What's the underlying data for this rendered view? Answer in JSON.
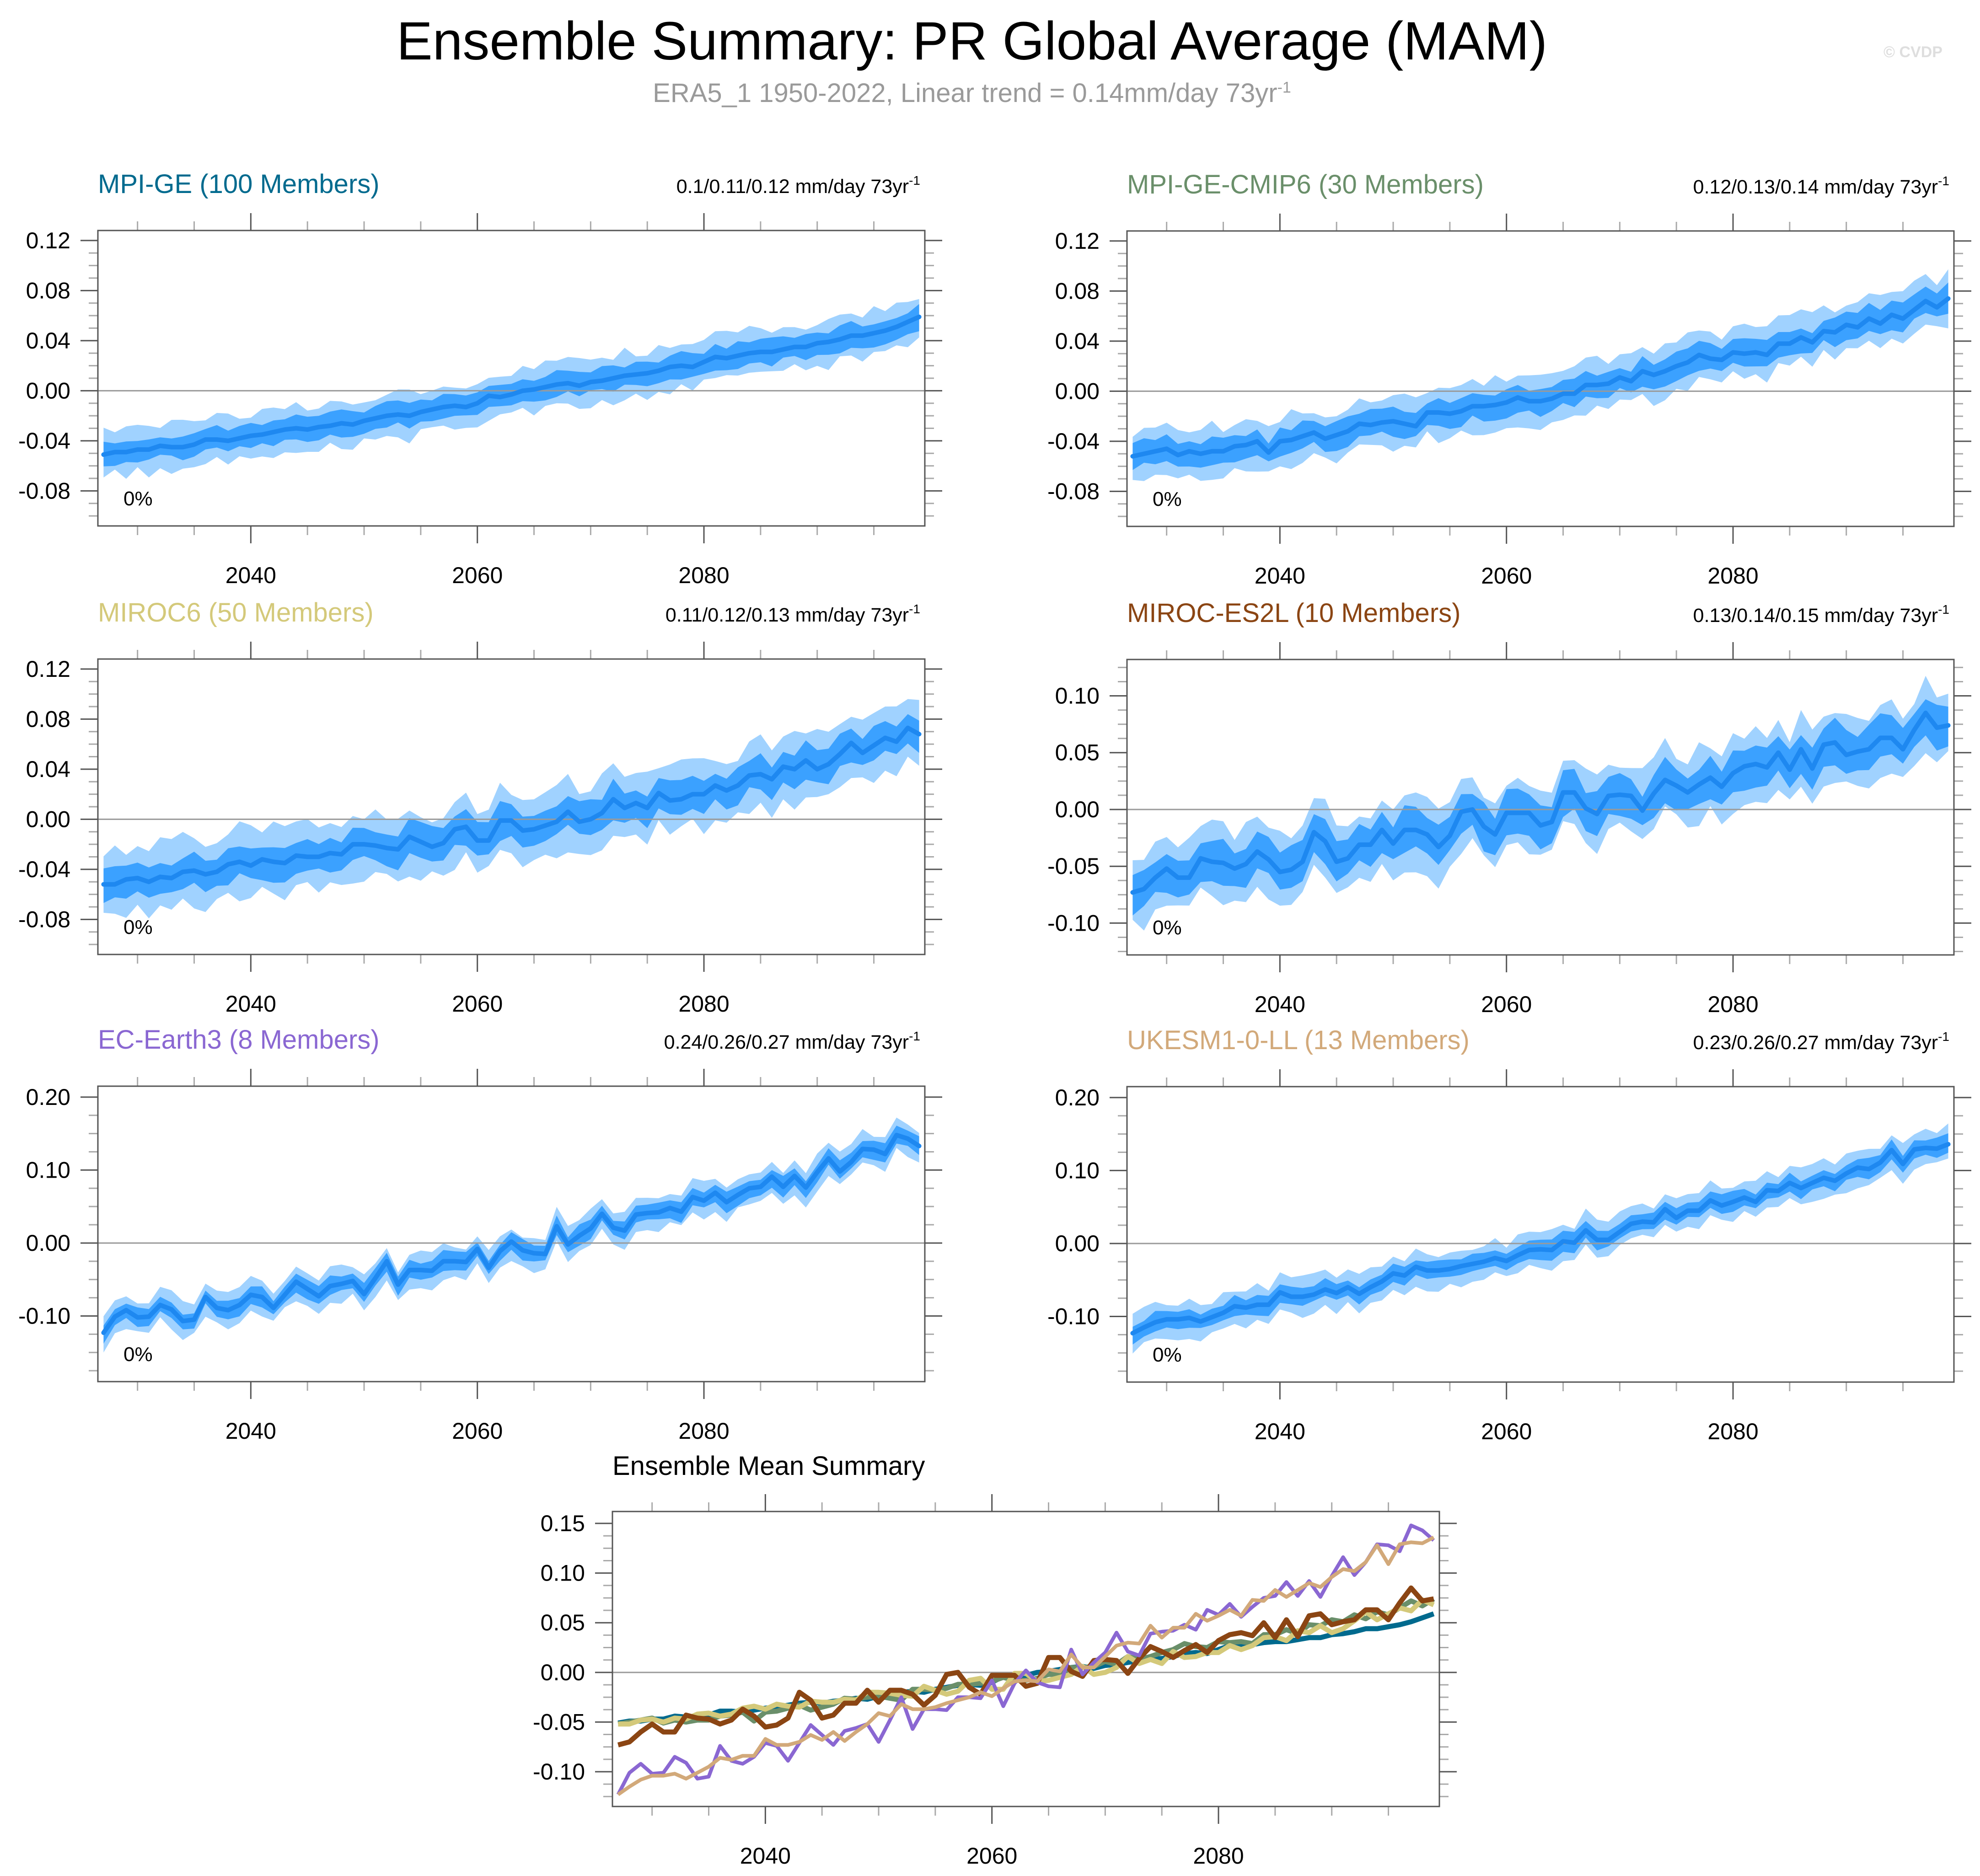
{
  "title": "Ensemble Summary: PR Global Average (MAM)",
  "subtitle": {
    "text": "ERA5_1 1950-2022, Linear trend = 0.14mm/day 73yr",
    "superscript": "-1"
  },
  "watermark": "© CVDP",
  "zero_annotation": "0%",
  "colors": {
    "band_outer": "#a0d2ff",
    "band_inner": "#3ba1ff",
    "mean_line": "#1e88f0",
    "zero_line": "#9a9a9a",
    "frame": "#555555"
  },
  "chart_data": [
    {
      "type": "area",
      "id": "mpi-ge",
      "title": "MPI-GE (100 Members)",
      "title_color": "#006a8e",
      "trend_text": "0.1/0.11/0.12 mm/day 73yr",
      "trend_superscript": "-1",
      "annotation": "0%",
      "xlim": [
        2026.5,
        2099.5
      ],
      "ylim": [
        -0.108,
        0.128
      ],
      "xticks": [
        2040,
        2060,
        2080
      ],
      "xtick_labels": [
        "2040",
        "2060",
        "2080"
      ],
      "yticks": [
        -0.08,
        -0.04,
        0.0,
        0.04,
        0.08,
        0.12
      ],
      "ytick_labels": [
        "-0.08",
        "-0.04",
        "0.00",
        "0.04",
        "0.08",
        "0.12"
      ],
      "years_start": 2027,
      "mean": [
        -0.051,
        -0.049,
        -0.049,
        -0.047,
        -0.047,
        -0.044,
        -0.045,
        -0.045,
        -0.043,
        -0.039,
        -0.039,
        -0.04,
        -0.038,
        -0.036,
        -0.035,
        -0.033,
        -0.031,
        -0.03,
        -0.031,
        -0.029,
        -0.028,
        -0.026,
        -0.027,
        -0.024,
        -0.022,
        -0.02,
        -0.019,
        -0.02,
        -0.017,
        -0.015,
        -0.013,
        -0.012,
        -0.013,
        -0.01,
        -0.004,
        -0.005,
        -0.003,
        0.0,
        0.001,
        0.003,
        0.005,
        0.006,
        0.004,
        0.007,
        0.008,
        0.01,
        0.012,
        0.013,
        0.014,
        0.016,
        0.019,
        0.02,
        0.019,
        0.023,
        0.027,
        0.026,
        0.028,
        0.03,
        0.031,
        0.031,
        0.033,
        0.035,
        0.035,
        0.038,
        0.039,
        0.041,
        0.044,
        0.044,
        0.046,
        0.048,
        0.051,
        0.055,
        0.059
      ],
      "inner_halfwidth": 0.009,
      "outer_halfwidth": 0.018
    },
    {
      "type": "area",
      "id": "mpi-ge-cmip6",
      "title": "MPI-GE-CMIP6 (30 Members)",
      "title_color": "#6a8f6a",
      "trend_text": "0.12/0.13/0.14 mm/day 73yr",
      "trend_superscript": "-1",
      "annotation": "0%",
      "xlim": [
        2026.5,
        2099.5
      ],
      "ylim": [
        -0.108,
        0.128
      ],
      "xticks": [
        2040,
        2060,
        2080
      ],
      "xtick_labels": [
        "2040",
        "2060",
        "2080"
      ],
      "yticks": [
        -0.08,
        -0.04,
        0.0,
        0.04,
        0.08,
        0.12
      ],
      "ytick_labels": [
        "-0.08",
        "-0.04",
        "0.00",
        "0.04",
        "0.08",
        "0.12"
      ],
      "years_start": 2027,
      "mean": [
        -0.052,
        -0.05,
        -0.048,
        -0.046,
        -0.051,
        -0.048,
        -0.05,
        -0.048,
        -0.048,
        -0.044,
        -0.043,
        -0.04,
        -0.049,
        -0.04,
        -0.039,
        -0.036,
        -0.033,
        -0.038,
        -0.035,
        -0.032,
        -0.026,
        -0.027,
        -0.025,
        -0.024,
        -0.026,
        -0.028,
        -0.017,
        -0.017,
        -0.018,
        -0.016,
        -0.012,
        -0.012,
        -0.011,
        -0.009,
        -0.005,
        -0.008,
        -0.008,
        -0.006,
        -0.002,
        -0.002,
        0.005,
        0.005,
        0.006,
        0.011,
        0.008,
        0.016,
        0.013,
        0.016,
        0.02,
        0.023,
        0.029,
        0.026,
        0.025,
        0.031,
        0.03,
        0.031,
        0.029,
        0.038,
        0.038,
        0.043,
        0.039,
        0.048,
        0.047,
        0.053,
        0.051,
        0.058,
        0.054,
        0.061,
        0.058,
        0.065,
        0.072,
        0.067,
        0.074
      ],
      "inner_halfwidth": 0.01,
      "outer_halfwidth": 0.02
    },
    {
      "type": "area",
      "id": "miroc6",
      "title": "MIROC6 (50 Members)",
      "title_color": "#d4c97a",
      "trend_text": "0.11/0.12/0.13 mm/day 73yr",
      "trend_superscript": "-1",
      "annotation": "0%",
      "xlim": [
        2026.5,
        2099.5
      ],
      "ylim": [
        -0.108,
        0.128
      ],
      "xticks": [
        2040,
        2060,
        2080
      ],
      "xtick_labels": [
        "2040",
        "2060",
        "2080"
      ],
      "yticks": [
        -0.08,
        -0.04,
        0.0,
        0.04,
        0.08,
        0.12
      ],
      "ytick_labels": [
        "-0.08",
        "-0.04",
        "0.00",
        "0.04",
        "0.08",
        "0.12"
      ],
      "years_start": 2027,
      "mean": [
        -0.052,
        -0.052,
        -0.048,
        -0.047,
        -0.05,
        -0.046,
        -0.047,
        -0.042,
        -0.041,
        -0.044,
        -0.042,
        -0.036,
        -0.034,
        -0.037,
        -0.032,
        -0.034,
        -0.035,
        -0.029,
        -0.03,
        -0.03,
        -0.027,
        -0.028,
        -0.02,
        -0.02,
        -0.021,
        -0.023,
        -0.024,
        -0.014,
        -0.018,
        -0.022,
        -0.019,
        -0.008,
        -0.006,
        -0.017,
        -0.017,
        -0.001,
        -0.001,
        -0.009,
        -0.008,
        -0.005,
        -0.002,
        0.006,
        -0.002,
        0.0,
        0.005,
        0.016,
        0.009,
        0.013,
        0.009,
        0.021,
        0.015,
        0.016,
        0.02,
        0.02,
        0.027,
        0.023,
        0.027,
        0.035,
        0.036,
        0.032,
        0.042,
        0.04,
        0.047,
        0.04,
        0.044,
        0.052,
        0.061,
        0.053,
        0.059,
        0.065,
        0.062,
        0.073,
        0.068
      ],
      "inner_halfwidth": 0.013,
      "outer_halfwidth": 0.026
    },
    {
      "type": "area",
      "id": "miroc-es2l",
      "title": "MIROC-ES2L (10 Members)",
      "title_color": "#8b4513",
      "trend_text": "0.13/0.14/0.15 mm/day 73yr",
      "trend_superscript": "-1",
      "annotation": "0%",
      "xlim": [
        2026.5,
        2099.5
      ],
      "ylim": [
        -0.128,
        0.132
      ],
      "xticks": [
        2040,
        2060,
        2080
      ],
      "xtick_labels": [
        "2040",
        "2060",
        "2080"
      ],
      "yticks": [
        -0.1,
        -0.05,
        0.0,
        0.05,
        0.1
      ],
      "ytick_labels": [
        "-0.10",
        "-0.05",
        "0.00",
        "0.05",
        "0.10"
      ],
      "years_start": 2027,
      "mean": [
        -0.073,
        -0.07,
        -0.06,
        -0.052,
        -0.06,
        -0.06,
        -0.043,
        -0.046,
        -0.047,
        -0.052,
        -0.048,
        -0.037,
        -0.044,
        -0.055,
        -0.053,
        -0.046,
        -0.02,
        -0.028,
        -0.046,
        -0.043,
        -0.031,
        -0.031,
        -0.018,
        -0.03,
        -0.018,
        -0.018,
        -0.022,
        -0.033,
        -0.023,
        -0.002,
        0.0,
        -0.015,
        -0.022,
        -0.003,
        -0.003,
        -0.003,
        -0.014,
        -0.011,
        0.015,
        0.015,
        0.001,
        -0.004,
        0.012,
        0.013,
        0.012,
        -0.001,
        0.014,
        0.026,
        0.021,
        0.015,
        0.022,
        0.028,
        0.02,
        0.032,
        0.038,
        0.04,
        0.037,
        0.05,
        0.035,
        0.053,
        0.036,
        0.057,
        0.059,
        0.048,
        0.051,
        0.053,
        0.063,
        0.063,
        0.053,
        0.07,
        0.085,
        0.072,
        0.074
      ],
      "inner_halfwidth": 0.017,
      "outer_halfwidth": 0.03
    },
    {
      "type": "area",
      "id": "ec-earth3",
      "title": "EC-Earth3 (8 Members)",
      "title_color": "#8a67d2",
      "trend_text": "0.24/0.26/0.27 mm/day 73yr",
      "trend_superscript": "-1",
      "annotation": "0%",
      "xlim": [
        2026.5,
        2099.5
      ],
      "ylim": [
        -0.19,
        0.215
      ],
      "xticks": [
        2040,
        2060,
        2080
      ],
      "xtick_labels": [
        "2040",
        "2060",
        "2080"
      ],
      "yticks": [
        -0.1,
        0.0,
        0.1,
        0.2
      ],
      "ytick_labels": [
        "-0.10",
        "0.00",
        "0.10",
        "0.20"
      ],
      "years_start": 2027,
      "mean": [
        -0.123,
        -0.101,
        -0.092,
        -0.102,
        -0.101,
        -0.085,
        -0.091,
        -0.107,
        -0.105,
        -0.074,
        -0.089,
        -0.092,
        -0.085,
        -0.071,
        -0.074,
        -0.089,
        -0.071,
        -0.053,
        -0.063,
        -0.073,
        -0.059,
        -0.056,
        -0.052,
        -0.07,
        -0.048,
        -0.025,
        -0.057,
        -0.037,
        -0.037,
        -0.038,
        -0.025,
        -0.025,
        -0.026,
        -0.008,
        -0.034,
        -0.011,
        0.002,
        -0.01,
        -0.014,
        -0.015,
        0.023,
        -0.002,
        0.01,
        0.02,
        0.04,
        0.021,
        0.017,
        0.039,
        0.041,
        0.042,
        0.048,
        0.043,
        0.063,
        0.058,
        0.069,
        0.056,
        0.066,
        0.075,
        0.077,
        0.091,
        0.077,
        0.092,
        0.076,
        0.097,
        0.116,
        0.098,
        0.111,
        0.129,
        0.128,
        0.122,
        0.148,
        0.143,
        0.133
      ],
      "inner_halfwidth": 0.012,
      "outer_halfwidth": 0.022
    },
    {
      "type": "area",
      "id": "ukesm1-0-ll",
      "title": "UKESM1-0-LL (13 Members)",
      "title_color": "#d2a97a",
      "trend_text": "0.23/0.26/0.27 mm/day 73yr",
      "trend_superscript": "-1",
      "annotation": "0%",
      "xlim": [
        2026.5,
        2099.5
      ],
      "ylim": [
        -0.19,
        0.215
      ],
      "xticks": [
        2040,
        2060,
        2080
      ],
      "xtick_labels": [
        "2040",
        "2060",
        "2080"
      ],
      "yticks": [
        -0.1,
        0.0,
        0.1,
        0.2
      ],
      "ytick_labels": [
        "-0.10",
        "0.00",
        "0.10",
        "0.20"
      ],
      "years_start": 2027,
      "mean": [
        -0.123,
        -0.115,
        -0.108,
        -0.104,
        -0.104,
        -0.102,
        -0.107,
        -0.101,
        -0.095,
        -0.086,
        -0.088,
        -0.084,
        -0.084,
        -0.067,
        -0.073,
        -0.073,
        -0.07,
        -0.063,
        -0.068,
        -0.06,
        -0.069,
        -0.06,
        -0.052,
        -0.041,
        -0.044,
        -0.032,
        -0.037,
        -0.037,
        -0.035,
        -0.031,
        -0.028,
        -0.025,
        -0.02,
        -0.024,
        -0.016,
        -0.009,
        -0.008,
        -0.009,
        0.003,
        0.001,
        0.018,
        0.005,
        0.005,
        0.016,
        0.027,
        0.03,
        0.029,
        0.047,
        0.035,
        0.045,
        0.045,
        0.059,
        0.052,
        0.057,
        0.063,
        0.057,
        0.073,
        0.072,
        0.083,
        0.076,
        0.083,
        0.09,
        0.086,
        0.096,
        0.104,
        0.102,
        0.111,
        0.128,
        0.109,
        0.129,
        0.131,
        0.13,
        0.136
      ],
      "inner_halfwidth": 0.012,
      "outer_halfwidth": 0.024
    },
    {
      "type": "line",
      "id": "ensemble-mean-summary",
      "title": "Ensemble Mean Summary",
      "xlim": [
        2026.5,
        2099.5
      ],
      "ylim": [
        -0.135,
        0.162
      ],
      "xticks": [
        2040,
        2060,
        2080
      ],
      "xtick_labels": [
        "2040",
        "2060",
        "2080"
      ],
      "yticks": [
        -0.1,
        -0.05,
        0.0,
        0.05,
        0.1,
        0.15
      ],
      "ytick_labels": [
        "-0.10",
        "-0.05",
        "0.00",
        "0.05",
        "0.10",
        "0.15"
      ],
      "series": [
        {
          "name": "MPI-GE",
          "color": "#006a8e",
          "source": "mpi-ge"
        },
        {
          "name": "MPI-GE-CMIP6",
          "color": "#6a8f6a",
          "source": "mpi-ge-cmip6"
        },
        {
          "name": "MIROC6",
          "color": "#d4c97a",
          "source": "miroc6"
        },
        {
          "name": "MIROC-ES2L",
          "color": "#8b4513",
          "source": "miroc-es2l"
        },
        {
          "name": "EC-Earth3",
          "color": "#8a67d2",
          "source": "ec-earth3"
        },
        {
          "name": "UKESM1-0-LL",
          "color": "#d2a97a",
          "source": "ukesm1-0-ll"
        }
      ]
    }
  ]
}
